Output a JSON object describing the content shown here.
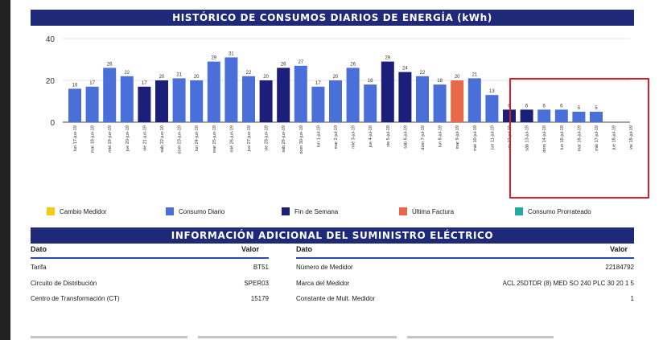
{
  "header": {
    "title": "HISTÓRICO DE CONSUMOS DIARIOS DE ENERGÍA (kWh)"
  },
  "chart_data": {
    "type": "bar",
    "title": "HISTÓRICO DE CONSUMOS DIARIOS DE ENERGÍA (kWh)",
    "ylim": [
      0,
      40
    ],
    "yticks": [
      0,
      20,
      40
    ],
    "categories": [
      "lun 17-jun-19",
      "mar 18-jun-19",
      "mié 19-jun-19",
      "jue 20-jun-19",
      "vie 21-jun-19",
      "sáb 22-jun-19",
      "dom 23-jun-19",
      "lun 24-jun-19",
      "mar 25-jun-19",
      "mié 26-jun-19",
      "jue 27-jun-19",
      "vie 28-jun-19",
      "sáb 29-jun-19",
      "dom 30-jun-19",
      "lun 1-jul-19",
      "mar 2-jul-19",
      "mié 3-jul-19",
      "jue 4-jul-19",
      "vie 5-jul-19",
      "sáb 6-jul-19",
      "dom 7-jul-19",
      "lun 8-jul-19",
      "mar 9-jul-19",
      "mié 10-jul-19",
      "jue 11-jul-19",
      "vie 12-jul-19",
      "sáb 13-jul-19",
      "dom 14-jul-19",
      "lun 15-jul-19",
      "mar 16-jul-19",
      "mié 17-jul-19",
      "jue 18-jul-19",
      "vie 19-jul-19"
    ],
    "values": [
      16,
      17,
      26,
      22,
      17,
      20,
      21,
      20,
      29,
      31,
      22,
      20,
      26,
      27,
      17,
      20,
      26,
      18,
      29,
      24,
      22,
      18,
      20,
      21,
      13,
      6,
      6,
      6,
      6,
      5,
      5,
      null,
      null
    ],
    "bar_types": [
      "consumo",
      "consumo",
      "consumo",
      "consumo",
      "fin",
      "fin",
      "consumo",
      "consumo",
      "consumo",
      "consumo",
      "consumo",
      "fin",
      "fin",
      "consumo",
      "consumo",
      "consumo",
      "consumo",
      "consumo",
      "fin",
      "fin",
      "consumo",
      "consumo",
      "factura",
      "consumo",
      "consumo",
      "fin",
      "fin",
      "consumo",
      "consumo",
      "consumo",
      "consumo",
      "consumo",
      "consumo"
    ],
    "colors": {
      "consumo": "#4a6fd8",
      "fin": "#1b1f7a",
      "factura": "#e8694a",
      "medidor": "#f2cc1c",
      "prorrateado": "#27a9a0"
    }
  },
  "legend": [
    {
      "label": "Cambio Medidor",
      "color": "#f2cc1c"
    },
    {
      "label": "Consumo  Diario",
      "color": "#4a6fd8"
    },
    {
      "label": "Fin de Semana",
      "color": "#1b1f7a"
    },
    {
      "label": "Última Factura",
      "color": "#e8694a"
    },
    {
      "label": "Consumo Prorrateado",
      "color": "#27a9a0"
    }
  ],
  "info": {
    "title": "INFORMACIÓN ADICIONAL DEL SUMINISTRO ELÉCTRICO",
    "left": {
      "col_dato": "Dato",
      "col_valor": "Valor",
      "rows": [
        {
          "dato": "Tarifa",
          "valor": "BT51"
        },
        {
          "dato": "Circuito de Distribución",
          "valor": "SPER03"
        },
        {
          "dato": "Centro de Transformación (CT)",
          "valor": "15179"
        }
      ]
    },
    "right": {
      "col_dato": "Dato",
      "col_valor": "Valor",
      "rows": [
        {
          "dato": "Número de Medidor",
          "valor": "22184792"
        },
        {
          "dato": "Marca del Medidor",
          "valor": "ACL 25DTDR (8) MED SO 240 PLC 30 20 1 5"
        },
        {
          "dato": "Constante de Mult. Medidor",
          "valor": "1"
        }
      ]
    }
  }
}
